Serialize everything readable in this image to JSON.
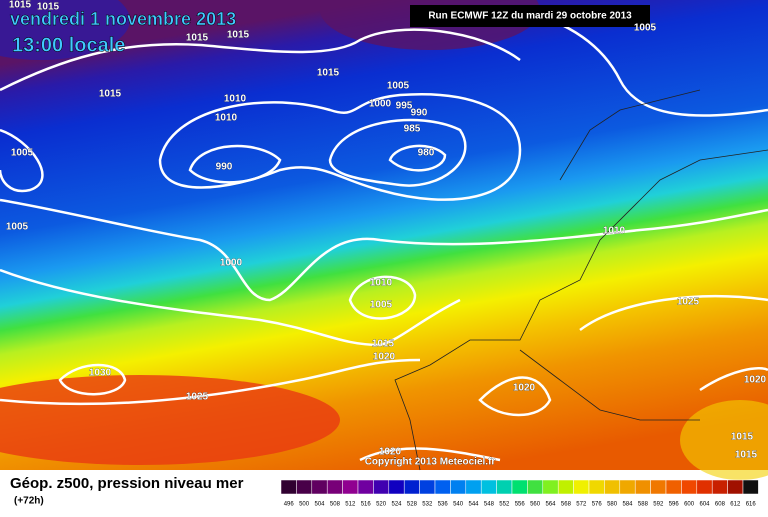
{
  "header": {
    "date": "vendredi 1 novembre 2013",
    "time": "13:00 locale",
    "run": "Run ECMWF 12Z du mardi 29 octobre 2013"
  },
  "isobar_labels": [
    1015,
    1015,
    1015,
    1015,
    1005,
    1015,
    1005,
    1010,
    1000,
    995,
    990,
    1010,
    985,
    1015,
    1005,
    980,
    990,
    1005,
    1010,
    1000,
    1010,
    1005,
    1025,
    1015,
    1020,
    1030,
    1020,
    1025,
    1020,
    1015,
    1020,
    1015
  ],
  "copyright": "Copyright 2013 Meteociel.fr",
  "footer": {
    "title": "Géop. z500, pression niveau mer",
    "lead": "(+72h)"
  },
  "scale": [
    496,
    500,
    504,
    508,
    512,
    516,
    520,
    524,
    528,
    532,
    536,
    540,
    544,
    548,
    552,
    556,
    560,
    564,
    568,
    572,
    576,
    580,
    584,
    588,
    592,
    596,
    600,
    604,
    608,
    612,
    616
  ]
}
